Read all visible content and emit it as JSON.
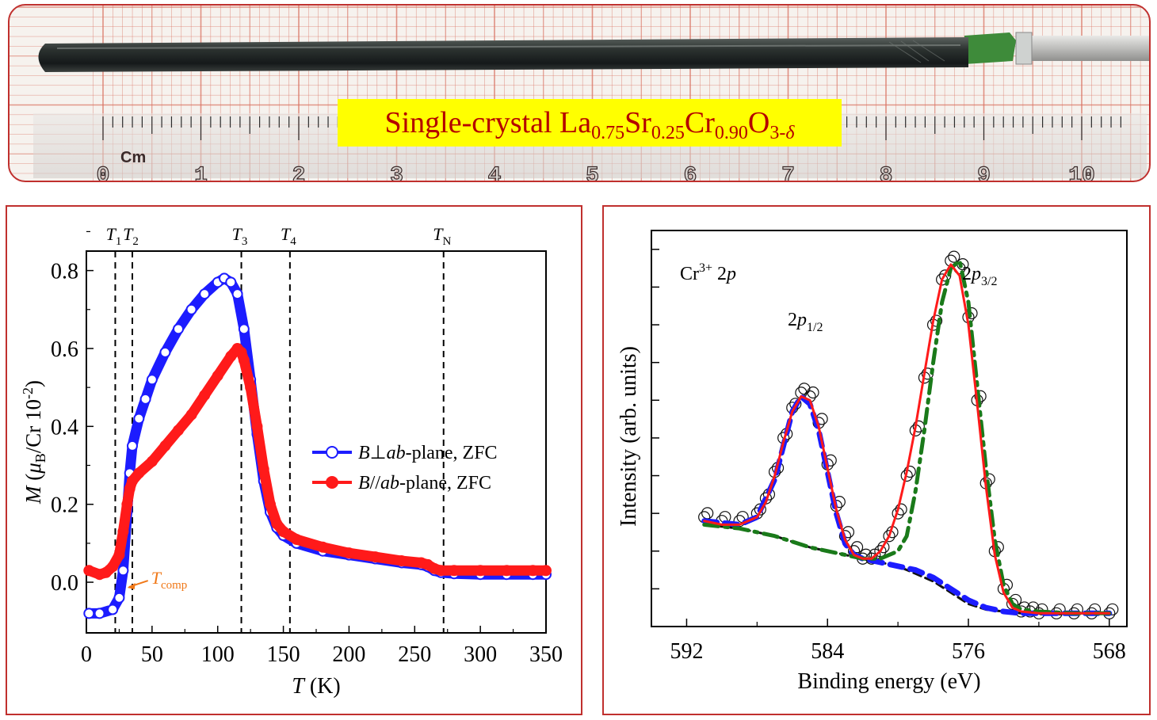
{
  "photo": {
    "title_prefix": "Single-crystal La",
    "sub_la": "0.75",
    "sr": "Sr",
    "sub_sr": "0.25",
    "cr": "Cr",
    "sub_cr": "0.90",
    "o": "O",
    "sub_o": "3-",
    "delta": "δ",
    "ruler_unit": "Cm",
    "ruler_numbers": [
      "0",
      "1",
      "2",
      "3",
      "4",
      "5",
      "6",
      "7",
      "8",
      "9",
      "10"
    ]
  },
  "chart_data": [
    {
      "type": "line",
      "xlabel": "T (K)",
      "xlabel_var": "T",
      "xlabel_unit": "(K)",
      "ylabel": "M (μB/Cr 10-2)",
      "xlim": [
        0,
        350
      ],
      "ylim": [
        -0.13,
        0.85
      ],
      "xticks": [
        "0",
        "50",
        "100",
        "150",
        "200",
        "250",
        "300",
        "350"
      ],
      "yticks": [
        "0.0",
        "0.2",
        "0.4",
        "0.6",
        "0.8"
      ],
      "ytick_values": [
        0.0,
        0.2,
        0.4,
        0.6,
        0.8
      ],
      "xtick_values": [
        0,
        50,
        100,
        150,
        200,
        250,
        300,
        350
      ],
      "vlines": [
        {
          "label": "T1",
          "x": 22
        },
        {
          "label": "T2",
          "x": 35
        },
        {
          "label": "T3",
          "x": 118
        },
        {
          "label": "T4",
          "x": 155
        },
        {
          "label": "TN",
          "x": 272
        }
      ],
      "annotation": {
        "label": "Tcomp",
        "x": 30,
        "y": 0.0,
        "color": "#f07818"
      },
      "legend_position": "center-right",
      "series": [
        {
          "name": "B⊥ab-plane, ZFC",
          "legend_var": "B",
          "legend_sym": "⊥",
          "legend_ab": "ab",
          "legend_rest": "-plane, ZFC",
          "color": "#1c1cff",
          "x": [
            2,
            10,
            20,
            25,
            28,
            31,
            33,
            35,
            40,
            45,
            50,
            60,
            70,
            80,
            90,
            100,
            105,
            110,
            115,
            120,
            125,
            130,
            135,
            140,
            145,
            150,
            160,
            180,
            200,
            220,
            240,
            255,
            260,
            265,
            270,
            280,
            300,
            320,
            340,
            350
          ],
          "y": [
            -0.08,
            -0.08,
            -0.07,
            -0.04,
            0.03,
            0.18,
            0.28,
            0.35,
            0.42,
            0.47,
            0.52,
            0.59,
            0.65,
            0.7,
            0.74,
            0.77,
            0.78,
            0.77,
            0.74,
            0.65,
            0.52,
            0.38,
            0.26,
            0.18,
            0.14,
            0.12,
            0.1,
            0.08,
            0.07,
            0.06,
            0.05,
            0.045,
            0.04,
            0.03,
            0.025,
            0.022,
            0.02,
            0.02,
            0.02,
            0.02
          ]
        },
        {
          "name": "B//ab-plane, ZFC",
          "legend_var": "B",
          "legend_sym": "//",
          "legend_ab": "ab",
          "legend_rest": "-plane, ZFC",
          "color": "#ff1a1a",
          "x": [
            2,
            10,
            15,
            20,
            25,
            28,
            31,
            33,
            35,
            40,
            50,
            60,
            70,
            80,
            90,
            100,
            110,
            115,
            118,
            120,
            125,
            130,
            135,
            140,
            145,
            150,
            160,
            180,
            200,
            220,
            240,
            255,
            260,
            265,
            270,
            280,
            300,
            320,
            340,
            350
          ],
          "y": [
            0.03,
            0.02,
            0.025,
            0.04,
            0.07,
            0.13,
            0.2,
            0.24,
            0.26,
            0.28,
            0.31,
            0.35,
            0.39,
            0.43,
            0.48,
            0.53,
            0.58,
            0.6,
            0.59,
            0.57,
            0.5,
            0.4,
            0.29,
            0.2,
            0.15,
            0.13,
            0.11,
            0.09,
            0.075,
            0.065,
            0.055,
            0.05,
            0.045,
            0.035,
            0.03,
            0.03,
            0.03,
            0.03,
            0.03,
            0.03
          ]
        }
      ]
    },
    {
      "type": "line",
      "xlabel": "Binding energy (eV)",
      "ylabel": "Intensity (arb. units)",
      "xlim": [
        594,
        567
      ],
      "ylim": [
        0.0,
        1.05
      ],
      "xticks": [
        "592",
        "584",
        "576",
        "568"
      ],
      "xtick_values": [
        592,
        584,
        576,
        568
      ],
      "minor_xtick_values": [
        588,
        580,
        572
      ],
      "ytick_values": [
        0.1,
        0.2,
        0.3,
        0.4,
        0.5,
        0.6,
        0.7,
        0.8,
        0.9,
        1.0
      ],
      "annotations": [
        {
          "label": "Cr3+ 2p",
          "text_main": "Cr",
          "text_sup": "3+",
          "text_tail": " 2",
          "text_italic": "p"
        },
        {
          "label": "2p1/2",
          "x": 585.5,
          "y": 0.75,
          "pre": "2",
          "italic": "p",
          "sub": "1/2"
        },
        {
          "label": "2p3/2",
          "x": 575,
          "y": 0.95,
          "pre": "2",
          "italic": "p",
          "sub": "3/2"
        }
      ],
      "series": [
        {
          "name": "data",
          "style": "open-circles",
          "color": "#111111",
          "x": [
            591,
            590,
            589,
            588,
            587.5,
            587,
            586.5,
            586,
            585.5,
            585,
            584.5,
            584,
            583.5,
            583,
            582.5,
            582,
            581.5,
            581,
            580.5,
            580,
            579.5,
            579,
            578.5,
            578,
            577.5,
            577,
            576.5,
            576,
            575.5,
            575,
            574.5,
            574,
            573.5,
            573,
            572.5,
            572,
            571,
            570,
            569,
            568
          ],
          "y": [
            0.29,
            0.28,
            0.28,
            0.3,
            0.34,
            0.41,
            0.5,
            0.58,
            0.62,
            0.61,
            0.54,
            0.43,
            0.32,
            0.24,
            0.2,
            0.18,
            0.18,
            0.2,
            0.24,
            0.3,
            0.4,
            0.52,
            0.66,
            0.8,
            0.92,
            0.97,
            0.95,
            0.82,
            0.6,
            0.38,
            0.2,
            0.1,
            0.06,
            0.04,
            0.04,
            0.035,
            0.035,
            0.035,
            0.035,
            0.035
          ]
        },
        {
          "name": "fit",
          "style": "line",
          "color": "#ff1a1a",
          "x": [
            591,
            590,
            589,
            588,
            587.5,
            587,
            586.5,
            586,
            585.5,
            585,
            584.5,
            584,
            583.5,
            583,
            582.5,
            582,
            581.5,
            581,
            580.5,
            580,
            579.5,
            579,
            578.5,
            578,
            577.5,
            577,
            576.5,
            576,
            575.5,
            575,
            574.5,
            574,
            573.5,
            573,
            572,
            570,
            568
          ],
          "y": [
            0.28,
            0.27,
            0.27,
            0.29,
            0.33,
            0.4,
            0.49,
            0.57,
            0.61,
            0.6,
            0.53,
            0.42,
            0.31,
            0.23,
            0.19,
            0.18,
            0.18,
            0.2,
            0.24,
            0.31,
            0.41,
            0.53,
            0.67,
            0.81,
            0.92,
            0.96,
            0.93,
            0.8,
            0.59,
            0.37,
            0.19,
            0.09,
            0.05,
            0.04,
            0.035,
            0.035,
            0.035
          ]
        },
        {
          "name": "2p1/2 component",
          "style": "dashed",
          "color": "#1c1cff",
          "x": [
            591,
            589,
            588,
            587,
            586.5,
            586,
            585.5,
            585,
            584.5,
            584,
            583.5,
            583,
            582.5,
            582,
            581,
            580,
            579,
            578,
            577,
            576,
            575,
            574,
            573,
            572,
            570,
            568
          ],
          "y": [
            0.28,
            0.27,
            0.29,
            0.39,
            0.48,
            0.57,
            0.61,
            0.59,
            0.52,
            0.41,
            0.3,
            0.22,
            0.19,
            0.18,
            0.17,
            0.16,
            0.15,
            0.13,
            0.1,
            0.07,
            0.05,
            0.04,
            0.035,
            0.035,
            0.035,
            0.035
          ]
        },
        {
          "name": "2p3/2 component",
          "style": "dashed",
          "color": "#1a7a1a",
          "x": [
            591,
            589,
            587,
            585,
            583,
            582,
            581,
            580,
            579.5,
            579,
            578.5,
            578,
            577.5,
            577,
            576.5,
            576,
            575.5,
            575,
            574.5,
            574,
            573.5,
            573,
            572,
            570,
            568
          ],
          "y": [
            0.27,
            0.26,
            0.24,
            0.21,
            0.19,
            0.18,
            0.18,
            0.2,
            0.24,
            0.36,
            0.52,
            0.7,
            0.86,
            0.95,
            0.97,
            0.86,
            0.64,
            0.42,
            0.23,
            0.11,
            0.06,
            0.045,
            0.04,
            0.035,
            0.035
          ]
        },
        {
          "name": "background",
          "style": "dashed",
          "color": "#111111",
          "x": [
            591,
            589,
            587,
            585,
            583,
            582,
            581,
            580,
            579,
            578,
            577,
            576,
            575,
            574,
            573,
            572,
            570,
            568
          ],
          "y": [
            0.27,
            0.26,
            0.24,
            0.21,
            0.19,
            0.18,
            0.17,
            0.16,
            0.14,
            0.12,
            0.09,
            0.06,
            0.045,
            0.04,
            0.035,
            0.035,
            0.035,
            0.035
          ]
        }
      ]
    }
  ]
}
